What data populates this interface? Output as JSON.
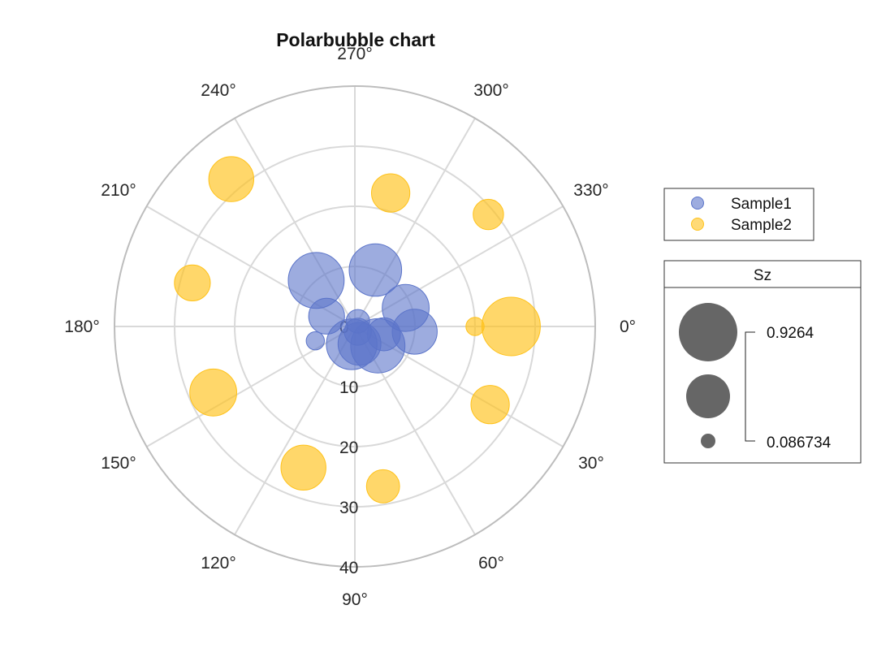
{
  "chart_data": {
    "type": "polarbubble",
    "title": "Polarbubble chart",
    "theta_unit": "deg",
    "theta_zero_location": "right",
    "theta_direction": "clockwise",
    "theta_ticks": [
      0,
      30,
      60,
      90,
      120,
      150,
      180,
      210,
      240,
      270,
      300,
      330
    ],
    "theta_tick_labels": [
      "0°",
      "30°",
      "60°",
      "90°",
      "120°",
      "150°",
      "180°",
      "210°",
      "240°",
      "270°",
      "300°",
      "330°"
    ],
    "r_ticks": [
      0,
      10,
      20,
      30,
      40
    ],
    "r_tick_labels": [
      "0",
      "10",
      "20",
      "30",
      "40"
    ],
    "rlim": [
      0,
      40
    ],
    "grid": true,
    "legend_position": "right",
    "colors": {
      "Sample1": "#5b74c9",
      "Sample2": "#ffc21a"
    },
    "series": [
      {
        "name": "Sample1",
        "color": "#5b74c9",
        "points": [
          {
            "theta": 5,
            "r": 10,
            "size": 0.55
          },
          {
            "theta": 15,
            "r": 5,
            "size": 0.3
          },
          {
            "theta": 40,
            "r": 5,
            "size": 0.8
          },
          {
            "theta": 75,
            "r": 3,
            "size": 0.5
          },
          {
            "theta": 100,
            "r": 3,
            "size": 0.7
          },
          {
            "theta": 160,
            "r": 7,
            "size": 0.09
          },
          {
            "theta": 200,
            "r": 5,
            "size": 0.35
          },
          {
            "theta": 230,
            "r": 10,
            "size": 0.85
          },
          {
            "theta": 290,
            "r": 10,
            "size": 0.75
          },
          {
            "theta": 340,
            "r": 9,
            "size": 0.6
          },
          {
            "theta": 60,
            "r": 1,
            "size": 0.2
          },
          {
            "theta": 300,
            "r": 1,
            "size": 0.15
          }
        ]
      },
      {
        "name": "Sample2",
        "color": "#ffc21a",
        "points": [
          {
            "theta": 0,
            "r": 26,
            "size": 0.93
          },
          {
            "theta": 0,
            "r": 20,
            "size": 0.09
          },
          {
            "theta": 30,
            "r": 26,
            "size": 0.4
          },
          {
            "theta": 80,
            "r": 27,
            "size": 0.3
          },
          {
            "theta": 110,
            "r": 25,
            "size": 0.55
          },
          {
            "theta": 155,
            "r": 26,
            "size": 0.6
          },
          {
            "theta": 195,
            "r": 28,
            "size": 0.35
          },
          {
            "theta": 230,
            "r": 32,
            "size": 0.55
          },
          {
            "theta": 285,
            "r": 23,
            "size": 0.4
          },
          {
            "theta": 320,
            "r": 29,
            "size": 0.25
          }
        ]
      }
    ],
    "size_legend": {
      "title": "Sz",
      "max_label": "0.9264",
      "min_label": "0.086734",
      "color": "#666666"
    }
  }
}
